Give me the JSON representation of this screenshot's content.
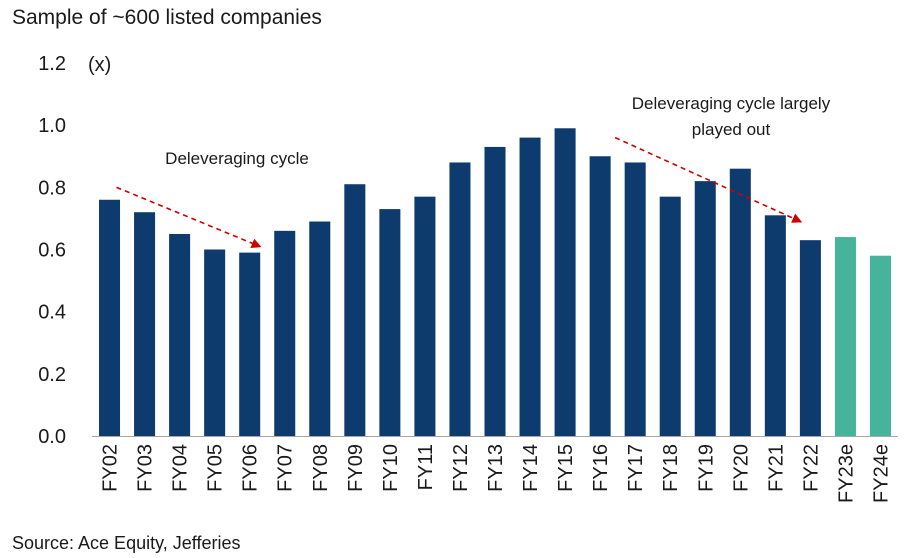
{
  "subtitle": "Sample of ~600 listed companies",
  "source": "Source: Ace Equity, Jefferies",
  "chart_data": {
    "type": "bar",
    "unit_label": "(x)",
    "categories": [
      "FY02",
      "FY03",
      "FY04",
      "FY05",
      "FY06",
      "FY07",
      "FY08",
      "FY09",
      "FY10",
      "FY11",
      "FY12",
      "FY13",
      "FY14",
      "FY15",
      "FY16",
      "FY17",
      "FY18",
      "FY19",
      "FY20",
      "FY21",
      "FY22",
      "FY23e",
      "FY24e"
    ],
    "values": [
      0.76,
      0.72,
      0.65,
      0.6,
      0.59,
      0.66,
      0.69,
      0.81,
      0.73,
      0.77,
      0.88,
      0.93,
      0.96,
      0.99,
      0.9,
      0.88,
      0.77,
      0.82,
      0.86,
      0.71,
      0.63,
      0.64,
      0.58
    ],
    "estimate_flags": [
      false,
      false,
      false,
      false,
      false,
      false,
      false,
      false,
      false,
      false,
      false,
      false,
      false,
      false,
      false,
      false,
      false,
      false,
      false,
      false,
      false,
      true,
      true
    ],
    "ylim": [
      0,
      1.2
    ],
    "yticks": [
      "0.0",
      "0.2",
      "0.4",
      "0.6",
      "0.8",
      "1.0",
      "1.2"
    ],
    "colors": {
      "actual": "#0e3b6e",
      "estimate": "#45b49a",
      "annotation": "#cc0000"
    },
    "annotations": [
      {
        "lines": [
          "Deleveraging cycle"
        ],
        "from_category": "FY02",
        "from_value": 0.8,
        "to_category": "FY06",
        "to_value": 0.61
      },
      {
        "lines": [
          "Deleveraging cycle largely",
          "played out"
        ],
        "from_category": "FY16",
        "from_value": 0.96,
        "to_category": "FY22",
        "to_value": 0.69
      }
    ],
    "grid": false,
    "legend": "none"
  }
}
